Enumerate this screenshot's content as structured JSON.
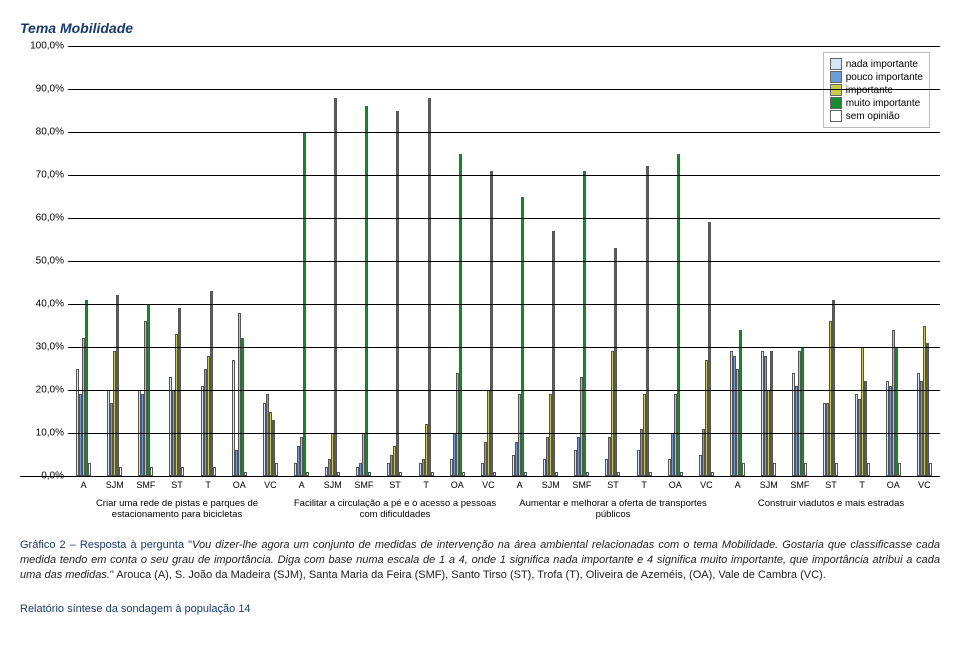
{
  "title": "Tema Mobilidade",
  "legend": {
    "items": [
      {
        "label": "nada importante",
        "color": "#d7e4f4"
      },
      {
        "label": "pouco importante",
        "color": "#6b9ed6"
      },
      {
        "label": "importante",
        "color": "#c7cc4a"
      },
      {
        "label": "muito importante",
        "color": "#1a8a2e"
      },
      {
        "label": "sem opinião",
        "color": "#ffffff"
      }
    ]
  },
  "yticks": [
    "0,0%",
    "10,0%",
    "20,0%",
    "30,0%",
    "40,0%",
    "50,0%",
    "60,0%",
    "70,0%",
    "80,0%",
    "90,0%",
    "100,0%"
  ],
  "colors": {
    "s1": "#d7e4f4",
    "s2": "#6b9ed6",
    "s3": "#c7cc4a",
    "s4": "#1a8a2e",
    "s5": "#ffffff",
    "border": "#555"
  },
  "sub_labels": [
    "A",
    "SJM",
    "SMF",
    "ST",
    "T",
    "OA",
    "VC"
  ],
  "group_labels": [
    "Criar uma rede de pistas e parques de estacionamento para bicicletas",
    "Facilitar a circulação a pé e o acesso a pessoas com dificuldades",
    "Aumentar e melhorar a oferta de transportes públicos",
    "Construir viadutos e mais estradas"
  ],
  "data": [
    [
      [
        25,
        19,
        32,
        41,
        3
      ],
      [
        20,
        17,
        29,
        42,
        2
      ],
      [
        20,
        19,
        36,
        40,
        2
      ],
      [
        23,
        20,
        33,
        39,
        2
      ],
      [
        21,
        25,
        28,
        43,
        2
      ],
      [
        27,
        6,
        38,
        32,
        1
      ],
      [
        17,
        19,
        15,
        13,
        3
      ]
    ],
    [
      [
        3,
        7,
        9,
        80,
        1
      ],
      [
        2,
        4,
        10,
        88,
        1
      ],
      [
        2,
        3,
        10,
        86,
        1
      ],
      [
        3,
        5,
        7,
        85,
        1
      ],
      [
        3,
        4,
        12,
        88,
        1
      ],
      [
        4,
        10,
        24,
        75,
        1
      ],
      [
        3,
        8,
        20,
        71,
        1
      ]
    ],
    [
      [
        5,
        8,
        19,
        65,
        1
      ],
      [
        4,
        9,
        19,
        57,
        1
      ],
      [
        6,
        9,
        23,
        71,
        1
      ],
      [
        4,
        9,
        29,
        53,
        1
      ],
      [
        6,
        11,
        19,
        72,
        1
      ],
      [
        4,
        10,
        19,
        75,
        1
      ],
      [
        5,
        11,
        27,
        59,
        1
      ]
    ],
    [
      [
        29,
        28,
        25,
        34,
        3
      ],
      [
        29,
        28,
        20,
        29,
        3
      ],
      [
        24,
        21,
        29,
        30,
        3
      ],
      [
        17,
        17,
        36,
        41,
        3
      ],
      [
        19,
        18,
        30,
        22,
        3
      ],
      [
        22,
        21,
        34,
        30,
        3
      ],
      [
        24,
        22,
        35,
        31,
        3
      ]
    ]
  ],
  "caption_parts": {
    "lead": "Gráfico 2 – Resposta à pergunta \"",
    "italic": "Vou dizer-lhe agora um conjunto de medidas de intervenção na área ambiental relacionadas com o tema Mobilidade. Gostaria que classificasse cada medida tendo em conta o seu grau de importância. Diga com base numa escala de 1 a 4, onde 1 significa nada importante e 4 significa muito importante, que importância atribui a cada uma das medidas.",
    "tail": "\" Arouca (A), S. João da Madeira (SJM), Santa Maria da Feira (SMF), Santo Tirso (ST), Trofa (T), Oliveira de Azeméis, (OA), Vale de Cambra (VC)."
  },
  "footer": "Relatório síntese da sondagem à população    14"
}
